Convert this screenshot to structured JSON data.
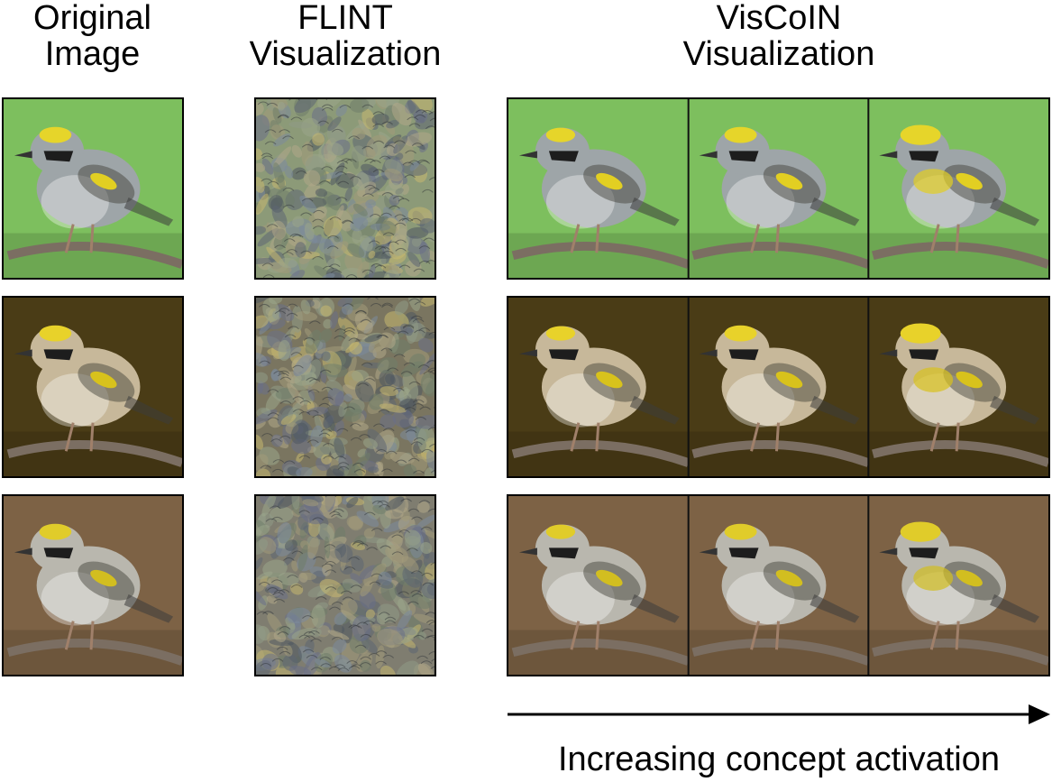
{
  "headers": {
    "original": [
      "Original",
      "Image"
    ],
    "flint": [
      "FLINT",
      "Visualization"
    ],
    "viscoin": [
      "VisCoIN",
      "Visualization"
    ]
  },
  "caption": "Increasing concept activation",
  "rows": [
    {
      "bg": "#7dbf5e",
      "flint_bg": "#8c9a78",
      "bird_body": "#9ea5a8",
      "cap": "#e6d52a",
      "patch": "#e2cf22"
    },
    {
      "bg": "#4a3c16",
      "flint_bg": "#7a7560",
      "bird_body": "#c7b89a",
      "cap": "#e8d22a",
      "patch": "#d8c21c"
    },
    {
      "bg": "#7d6245",
      "flint_bg": "#7f7d70",
      "bird_body": "#b9b7ae",
      "cap": "#e0cc2a",
      "patch": "#d2be20"
    }
  ],
  "colors": {
    "border": "#000000",
    "arrow": "#000000"
  }
}
